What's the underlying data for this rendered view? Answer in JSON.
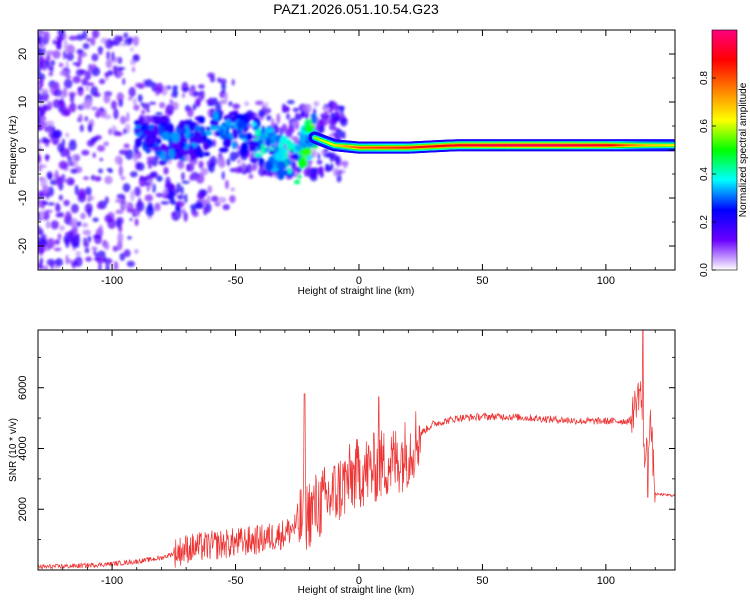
{
  "page_title": "PAZ1.2026.051.10.54.G23",
  "chart_data": [
    {
      "type": "heatmap",
      "name": "spectrogram",
      "title": "PAZ1.2026.051.10.54.G23",
      "xlabel": "Height of straight line (km)",
      "ylabel": "Frequency (Hz)",
      "xlim": [
        -130,
        128
      ],
      "ylim": [
        -25,
        25
      ],
      "x_ticks": [
        -100,
        -50,
        0,
        50,
        100
      ],
      "x_tick_labels": [
        "-100",
        "-50",
        "0",
        "50",
        "100"
      ],
      "y_ticks": [
        -20,
        -10,
        0,
        10,
        20
      ],
      "y_tick_labels": [
        "-20",
        "-10",
        "0",
        "10",
        "20"
      ],
      "grid": false,
      "colorbar": {
        "label": "Normalized spectral amplitude",
        "range": [
          0.0,
          1.0
        ],
        "ticks": [
          0.0,
          0.2,
          0.4,
          0.6,
          0.8
        ],
        "tick_labels": [
          "0.0",
          "0.2",
          "0.4",
          "0.6",
          "0.8"
        ],
        "colormap": [
          "#ffffff",
          "#6a00ff",
          "#0000ff",
          "#00ffff",
          "#00ff00",
          "#ffff00",
          "#ff8000",
          "#ff0000",
          "#ff0080"
        ]
      },
      "main_ridge": {
        "description": "dominant frequency vs height",
        "points": [
          {
            "x": -85,
            "freq": 3.0,
            "amp": 0.3
          },
          {
            "x": -70,
            "freq": 2.0,
            "amp": 0.3
          },
          {
            "x": -55,
            "freq": 4.0,
            "amp": 0.32
          },
          {
            "x": -45,
            "freq": 3.0,
            "amp": 0.35
          },
          {
            "x": -38,
            "freq": 1.0,
            "amp": 0.4
          },
          {
            "x": -30,
            "freq": -2.0,
            "amp": 0.45
          },
          {
            "x": -25,
            "freq": -3.0,
            "amp": 0.45
          },
          {
            "x": -20,
            "freq": 3.0,
            "amp": 0.55
          },
          {
            "x": -10,
            "freq": 1.0,
            "amp": 0.65
          },
          {
            "x": 0,
            "freq": 0.5,
            "amp": 0.8
          },
          {
            "x": 20,
            "freq": 0.5,
            "amp": 0.85
          },
          {
            "x": 40,
            "freq": 1.0,
            "amp": 0.9
          },
          {
            "x": 60,
            "freq": 1.0,
            "amp": 0.95
          },
          {
            "x": 80,
            "freq": 1.0,
            "amp": 0.95
          },
          {
            "x": 100,
            "freq": 1.0,
            "amp": 0.9
          },
          {
            "x": 115,
            "freq": 1.0,
            "amp": 0.7
          },
          {
            "x": 125,
            "freq": 1.0,
            "amp": 0.65
          }
        ]
      }
    },
    {
      "type": "line",
      "name": "snr",
      "xlabel": "Height of straight line (km)",
      "ylabel": "SNR (10 * v/v)",
      "xlim": [
        -130,
        128
      ],
      "ylim": [
        0,
        7900
      ],
      "x_ticks": [
        -100,
        -50,
        0,
        50,
        100
      ],
      "x_tick_labels": [
        "-100",
        "-50",
        "0",
        "50",
        "100"
      ],
      "y_ticks": [
        2000,
        4000,
        6000
      ],
      "y_tick_labels": [
        "2000",
        "4000",
        "6000"
      ],
      "grid": false,
      "series": [
        {
          "name": "SNR",
          "color": "#ee3333",
          "x": [
            -130,
            -120,
            -110,
            -100,
            -90,
            -80,
            -70,
            -60,
            -50,
            -40,
            -30,
            -25,
            -20,
            -15,
            -10,
            -5,
            0,
            5,
            10,
            15,
            20,
            25,
            30,
            40,
            50,
            60,
            70,
            80,
            90,
            100,
            110,
            112,
            114,
            116,
            118,
            120,
            128
          ],
          "values": [
            100,
            120,
            150,
            200,
            280,
            400,
            700,
            800,
            900,
            1000,
            1200,
            1500,
            1900,
            2200,
            2500,
            2900,
            3200,
            3300,
            3500,
            3600,
            3900,
            4500,
            4800,
            5000,
            5050,
            5050,
            5000,
            4950,
            4900,
            4900,
            4900,
            5500,
            6000,
            3500,
            5000,
            2500,
            2450
          ],
          "spikes": [
            {
              "x": -22,
              "value": 5800
            },
            {
              "x": 8,
              "value": 5700
            },
            {
              "x": 115,
              "value": 7900
            },
            {
              "x": 117,
              "value": 2400
            }
          ]
        }
      ]
    }
  ]
}
